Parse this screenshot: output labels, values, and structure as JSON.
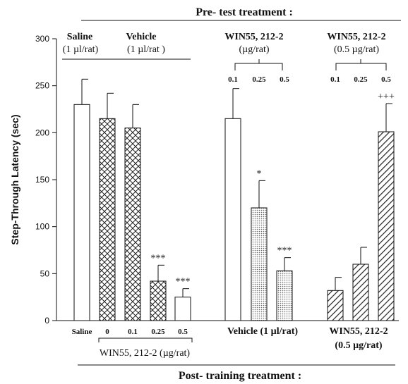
{
  "chart_data": {
    "type": "bar",
    "title_top": "Pre- test treatment :",
    "title_bottom": "Post- training treatment :",
    "ylabel": "Step-Through Latency (sec)",
    "ylim": [
      0,
      300
    ],
    "yticks": [
      0,
      50,
      100,
      150,
      200,
      250,
      300
    ],
    "bars": [
      {
        "value": 230,
        "error": 27,
        "fill": "white",
        "label": "Saline"
      },
      {
        "value": 215,
        "error": 27,
        "fill": "crosshatch",
        "label": "0"
      },
      {
        "value": 205,
        "error": 25,
        "fill": "crosshatch",
        "label": "0.1"
      },
      {
        "value": 42,
        "error": 17,
        "fill": "crosshatch",
        "label": "0.25",
        "annotation": "***"
      },
      {
        "value": 25,
        "error": 9,
        "fill": "white",
        "label": "0.5",
        "annotation": "***"
      },
      {
        "value": 215,
        "error": 32,
        "fill": "white",
        "top_label": "0.1"
      },
      {
        "value": 120,
        "error": 29,
        "fill": "dotted",
        "top_label": "0.25",
        "annotation": "*"
      },
      {
        "value": 53,
        "error": 14,
        "fill": "dotted",
        "top_label": "0.5",
        "annotation": "***"
      },
      {
        "value": 32,
        "error": 14,
        "fill": "diagonal",
        "top_label": "0.1"
      },
      {
        "value": 60,
        "error": 18,
        "fill": "diagonal",
        "top_label": "0.25"
      },
      {
        "value": 201,
        "error": 30,
        "fill": "diagonal",
        "top_label": "0.5",
        "annotation": "+++"
      }
    ],
    "group_headers": {
      "saline_top": [
        "Saline",
        "(1 µl/rat)"
      ],
      "vehicle_top": [
        "Vehicle",
        "(1 µl/rat )"
      ],
      "win_top": [
        "WIN55, 212-2",
        "(µg/rat)"
      ],
      "win05_top": [
        "WIN55, 212-2",
        "(0.5 µg/rat)"
      ]
    },
    "bottom_groups": {
      "win_post": "WIN55, 212-2 (µg/rat)",
      "vehicle_post": "Vehicle (1 µl/rat)",
      "win05_post": [
        "WIN55, 212-2",
        "(0.5 µg/rat)"
      ]
    }
  }
}
